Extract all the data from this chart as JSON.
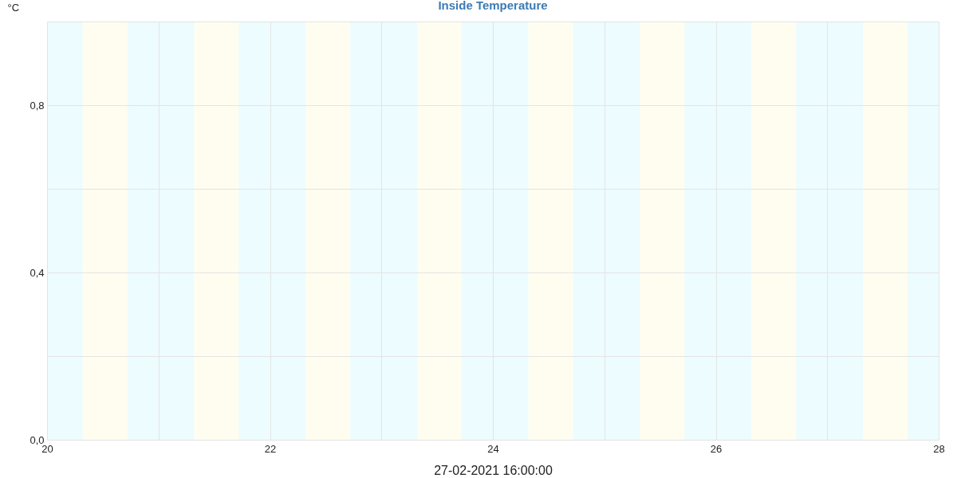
{
  "chart_data": {
    "type": "line",
    "title": "Inside Temperature",
    "xlabel": "27-02-2021 16:00:00",
    "ylabel": "°C",
    "xlim": [
      20,
      28
    ],
    "xticks": [
      20,
      {
        "value": 21,
        "label": null
      },
      22,
      {
        "value": 23,
        "label": null
      },
      24,
      {
        "value": 25,
        "label": null
      },
      26,
      {
        "value": 27,
        "label": null
      },
      28
    ],
    "ylim": [
      0,
      1
    ],
    "yticks": [
      {
        "value": 0,
        "label": "0,0"
      },
      {
        "value": 0.2,
        "label": null
      },
      {
        "value": 0.4,
        "label": "0,4"
      },
      {
        "value": 0.6,
        "label": null
      },
      {
        "value": 0.8,
        "label": "0,8"
      },
      {
        "value": 1,
        "label": null
      }
    ],
    "grid": true,
    "bands": [
      {
        "axis": "x",
        "from": 20,
        "to": 20.32,
        "color": "#edfcfe"
      },
      {
        "axis": "x",
        "from": 20.32,
        "to": 20.72,
        "color": "#fefdef"
      },
      {
        "axis": "x",
        "from": 20.72,
        "to": 21.32,
        "color": "#edfcfe"
      },
      {
        "axis": "x",
        "from": 21.32,
        "to": 21.72,
        "color": "#fefdef"
      },
      {
        "axis": "x",
        "from": 21.72,
        "to": 22.32,
        "color": "#edfcfe"
      },
      {
        "axis": "x",
        "from": 22.32,
        "to": 22.72,
        "color": "#fefdef"
      },
      {
        "axis": "x",
        "from": 22.72,
        "to": 23.32,
        "color": "#edfcfe"
      },
      {
        "axis": "x",
        "from": 23.32,
        "to": 23.72,
        "color": "#fefdef"
      },
      {
        "axis": "x",
        "from": 23.72,
        "to": 24.32,
        "color": "#edfcfe"
      },
      {
        "axis": "x",
        "from": 24.32,
        "to": 24.72,
        "color": "#fefdef"
      },
      {
        "axis": "x",
        "from": 24.72,
        "to": 25.32,
        "color": "#edfcfe"
      },
      {
        "axis": "x",
        "from": 25.32,
        "to": 25.72,
        "color": "#fefdef"
      },
      {
        "axis": "x",
        "from": 25.72,
        "to": 26.32,
        "color": "#edfcfe"
      },
      {
        "axis": "x",
        "from": 26.32,
        "to": 26.72,
        "color": "#fefdef"
      },
      {
        "axis": "x",
        "from": 26.72,
        "to": 27.32,
        "color": "#edfcfe"
      },
      {
        "axis": "x",
        "from": 27.32,
        "to": 27.72,
        "color": "#fefdef"
      },
      {
        "axis": "x",
        "from": 27.72,
        "to": 28,
        "color": "#edfcfe"
      }
    ]
  }
}
